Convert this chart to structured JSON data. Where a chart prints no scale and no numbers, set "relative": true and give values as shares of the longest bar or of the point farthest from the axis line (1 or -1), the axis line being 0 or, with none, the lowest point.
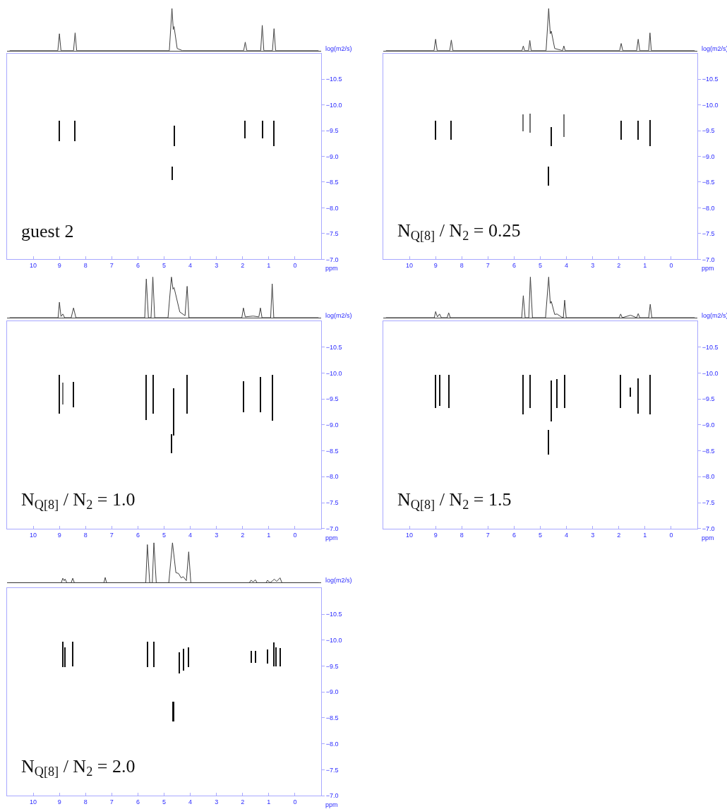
{
  "chart_data": [
    {
      "type": "line",
      "relative": true,
      "color": "#404040",
      "xlim": [
        11.0,
        -1.0
      ],
      "tick_labels": false,
      "x": [
        10.9,
        9.06,
        9.0,
        8.94,
        8.46,
        8.4,
        8.34,
        4.8,
        4.7,
        4.65,
        4.62,
        4.5,
        4.3,
        1.96,
        1.9,
        1.84,
        1.31,
        1.25,
        1.19,
        0.86,
        0.8,
        0.74,
        -0.9
      ],
      "values": [
        0,
        0,
        0.4,
        0,
        0,
        0.42,
        0,
        0,
        1.0,
        0.5,
        0.57,
        0.05,
        0,
        0,
        0.2,
        0,
        0,
        0.6,
        0,
        0,
        0.52,
        0,
        0
      ]
    },
    {
      "type": "bar",
      "xlabel": "ppm",
      "ylabel": "log(m2/s)",
      "xlim": [
        11.0,
        -1.0
      ],
      "xticks": [
        10,
        9,
        8,
        7,
        6,
        5,
        4,
        3,
        2,
        1,
        0
      ],
      "ylim": [
        -7.0,
        -11.0
      ],
      "yticks": [
        {
          "value": -10.5,
          "label": "−10.5"
        },
        {
          "value": -10.0,
          "label": "−10.0"
        },
        {
          "value": -9.5,
          "label": "−9.5"
        },
        {
          "value": -9.0,
          "label": "−9.0"
        },
        {
          "value": -8.5,
          "label": "−8.5"
        },
        {
          "value": -8.0,
          "label": "−8.0"
        },
        {
          "value": -7.5,
          "label": "−7.5"
        },
        {
          "value": -7.0,
          "label": "−7.0"
        }
      ],
      "annotations": [
        "guest 2"
      ],
      "x": [
        9.0,
        8.4,
        4.7,
        4.6,
        1.9,
        1.25,
        0.8
      ],
      "base": [
        -9.3,
        -9.3,
        -8.55,
        -9.2,
        -9.35,
        -9.35,
        -9.2
      ],
      "values": [
        -0.4,
        -0.4,
        -0.25,
        -0.4,
        -0.35,
        -0.35,
        -0.5
      ],
      "colors": [
        "#111111",
        "#111111",
        "#111111",
        "#111111",
        "#111111",
        "#111111",
        "#111111"
      ]
    },
    {
      "type": "line",
      "relative": true,
      "color": "#404040",
      "xlim": [
        11.0,
        -1.0
      ],
      "tick_labels": false,
      "x": [
        10.9,
        9.06,
        9.0,
        8.94,
        8.46,
        8.4,
        8.34,
        5.7,
        5.65,
        5.6,
        5.45,
        5.4,
        5.35,
        4.78,
        4.68,
        4.62,
        4.58,
        4.45,
        4.15,
        4.1,
        4.05,
        1.97,
        1.91,
        1.85,
        1.32,
        1.26,
        1.2,
        0.86,
        0.81,
        0.76,
        -0.9
      ],
      "values": [
        0,
        0,
        0.27,
        0,
        0,
        0.25,
        0,
        0,
        0.11,
        0,
        0,
        0.24,
        0,
        0,
        1.0,
        0.4,
        0.46,
        0.05,
        0,
        0.11,
        0,
        0,
        0.17,
        0,
        0,
        0.27,
        0,
        0,
        0.42,
        0,
        0
      ]
    },
    {
      "type": "bar",
      "xlabel": "ppm",
      "ylabel": "log(m2/s)",
      "xlim": [
        11.0,
        -1.0
      ],
      "xticks": [
        10,
        9,
        8,
        7,
        6,
        5,
        4,
        3,
        2,
        1,
        0
      ],
      "ylim": [
        -7.0,
        -11.0
      ],
      "yticks": [
        {
          "value": -10.5,
          "label": "−10.5"
        },
        {
          "value": -10.0,
          "label": "−10.0"
        },
        {
          "value": -9.5,
          "label": "−9.5"
        },
        {
          "value": -9.0,
          "label": "−9.0"
        },
        {
          "value": -8.5,
          "label": "−8.5"
        },
        {
          "value": -8.0,
          "label": "−8.0"
        },
        {
          "value": -7.5,
          "label": "−7.5"
        },
        {
          "value": -7.0,
          "label": "−7.0"
        }
      ],
      "annotations": [
        "N$_{Q[8]}$ / N$_{2}$ = 0.25"
      ],
      "x": [
        9.0,
        8.4,
        5.65,
        5.4,
        4.68,
        4.59,
        4.09,
        1.91,
        1.26,
        0.81
      ],
      "base": [
        -9.33,
        -9.33,
        -9.49,
        -9.46,
        -8.43,
        -9.2,
        -9.38,
        -9.33,
        -9.33,
        -9.21
      ],
      "values": [
        -0.37,
        -0.37,
        -0.33,
        -0.37,
        -0.38,
        -0.37,
        -0.44,
        -0.37,
        -0.37,
        -0.5
      ],
      "colors": [
        "#111111",
        "#111111",
        "#707070",
        "#707070",
        "#111111",
        "#111111",
        "#707070",
        "#111111",
        "#111111",
        "#111111"
      ]
    },
    {
      "type": "line",
      "relative": true,
      "color": "#404040",
      "xlim": [
        11.0,
        -1.0
      ],
      "tick_labels": false,
      "x": [
        10.9,
        9.05,
        9.0,
        8.94,
        8.87,
        8.8,
        8.55,
        8.46,
        8.37,
        5.74,
        5.68,
        5.6,
        5.5,
        5.43,
        5.36,
        4.85,
        4.72,
        4.66,
        4.62,
        4.4,
        4.2,
        4.12,
        4.05,
        2.03,
        1.97,
        1.9,
        1.6,
        1.38,
        1.32,
        1.26,
        0.93,
        0.87,
        0.81,
        -0.9
      ],
      "values": [
        0,
        0,
        0.38,
        0.03,
        0.09,
        0,
        0,
        0.24,
        0,
        0,
        0.95,
        0,
        0,
        1.0,
        0,
        0,
        1.0,
        0.7,
        0.74,
        0.14,
        0.05,
        0.77,
        0,
        0,
        0.24,
        0.02,
        0.04,
        0.02,
        0.24,
        0,
        0,
        0.83,
        0,
        0
      ]
    },
    {
      "type": "bar",
      "xlabel": "ppm",
      "ylabel": "log(m2/s)",
      "xlim": [
        11.0,
        -1.0
      ],
      "xticks": [
        10,
        9,
        8,
        7,
        6,
        5,
        4,
        3,
        2,
        1,
        0
      ],
      "ylim": [
        -7.0,
        -11.0
      ],
      "yticks": [
        {
          "value": -10.5,
          "label": "−10.5"
        },
        {
          "value": -10.0,
          "label": "−10.0"
        },
        {
          "value": -9.5,
          "label": "−9.5"
        },
        {
          "value": -9.0,
          "label": "−9.0"
        },
        {
          "value": -8.5,
          "label": "−8.5"
        },
        {
          "value": -8.0,
          "label": "−8.0"
        },
        {
          "value": -7.5,
          "label": "−7.5"
        },
        {
          "value": -7.0,
          "label": "−7.0"
        }
      ],
      "annotations": [
        "N$_{Q[8]}$ / N$_{2}$ = 1.0"
      ],
      "x": [
        9.0,
        8.87,
        8.46,
        5.68,
        5.43,
        4.72,
        4.63,
        4.12,
        1.97,
        1.32,
        0.87
      ],
      "base": [
        -9.21,
        -9.39,
        -9.34,
        -9.09,
        -9.21,
        -8.46,
        -8.8,
        -9.21,
        -9.24,
        -9.24,
        -9.08
      ],
      "values": [
        -0.76,
        -0.42,
        -0.49,
        -0.88,
        -0.76,
        -0.36,
        -0.91,
        -0.76,
        -0.6,
        -0.69,
        -0.89
      ],
      "colors": [
        "#111111",
        "#707070",
        "#111111",
        "#111111",
        "#111111",
        "#111111",
        "#111111",
        "#111111",
        "#111111",
        "#111111",
        "#111111"
      ]
    },
    {
      "type": "line",
      "relative": true,
      "color": "#404040",
      "xlim": [
        11.0,
        -1.0
      ],
      "tick_labels": false,
      "x": [
        10.9,
        9.05,
        9.0,
        8.93,
        8.85,
        8.78,
        8.56,
        8.5,
        8.44,
        5.71,
        5.65,
        5.58,
        5.44,
        5.38,
        5.3,
        4.8,
        4.68,
        4.62,
        4.58,
        4.45,
        4.36,
        4.2,
        4.12,
        4.07,
        4.01,
        1.99,
        1.93,
        1.87,
        1.55,
        1.32,
        1.26,
        1.2,
        0.86,
        0.8,
        0.74,
        -0.9
      ],
      "values": [
        0,
        0,
        0.15,
        0.02,
        0.09,
        0,
        0,
        0.12,
        0,
        0,
        0.54,
        0,
        0,
        1.0,
        0,
        0,
        1.0,
        0.35,
        0.4,
        0.08,
        0.09,
        0.02,
        0,
        0.43,
        0,
        0,
        0.09,
        0,
        0.06,
        0,
        0.1,
        0,
        0,
        0.33,
        0,
        0
      ]
    },
    {
      "type": "bar",
      "xlabel": "ppm",
      "ylabel": "log(m2/s)",
      "xlim": [
        11.0,
        -1.0
      ],
      "xticks": [
        10,
        9,
        8,
        7,
        6,
        5,
        4,
        3,
        2,
        1,
        0
      ],
      "ylim": [
        -7.0,
        -11.0
      ],
      "yticks": [
        {
          "value": -10.5,
          "label": "−10.5"
        },
        {
          "value": -10.0,
          "label": "−10.0"
        },
        {
          "value": -9.5,
          "label": "−9.5"
        },
        {
          "value": -9.0,
          "label": "−9.0"
        },
        {
          "value": -8.5,
          "label": "−8.5"
        },
        {
          "value": -8.0,
          "label": "−8.0"
        },
        {
          "value": -7.5,
          "label": "−7.5"
        },
        {
          "value": -7.0,
          "label": "−7.0"
        }
      ],
      "annotations": [
        "N$_{Q[8]}$ / N$_{2}$ = 1.5"
      ],
      "x": [
        9.0,
        8.83,
        8.5,
        5.65,
        5.38,
        4.68,
        4.59,
        4.36,
        4.07,
        1.93,
        1.55,
        1.26,
        0.8
      ],
      "base": [
        -9.33,
        -9.36,
        -9.33,
        -9.2,
        -9.33,
        -8.43,
        -9.06,
        -9.33,
        -9.33,
        -9.33,
        -9.54,
        -9.22,
        -9.2
      ],
      "values": [
        -0.64,
        -0.61,
        -0.64,
        -0.77,
        -0.64,
        -0.47,
        -0.79,
        -0.55,
        -0.64,
        -0.64,
        -0.18,
        -0.68,
        -0.77
      ],
      "colors": [
        "#111111",
        "#111111",
        "#111111",
        "#111111",
        "#111111",
        "#111111",
        "#111111",
        "#111111",
        "#111111",
        "#111111",
        "#111111",
        "#111111",
        "#111111"
      ]
    },
    {
      "type": "line",
      "relative": true,
      "color": "#404040",
      "xlim": [
        11.0,
        -1.0
      ],
      "tick_labels": false,
      "x": [
        10.9,
        8.93,
        8.87,
        8.82,
        8.78,
        8.72,
        8.55,
        8.49,
        8.43,
        7.3,
        7.25,
        7.2,
        5.7,
        5.64,
        5.55,
        5.45,
        5.39,
        5.3,
        4.82,
        4.68,
        4.55,
        4.45,
        4.35,
        4.27,
        4.15,
        4.06,
        3.98,
        1.74,
        1.68,
        1.6,
        1.51,
        1.45,
        1.1,
        1.05,
        0.95,
        0.85,
        0.79,
        0.7,
        0.57,
        0.5,
        -0.9
      ],
      "values": [
        0,
        0,
        0.11,
        0.05,
        0.09,
        0,
        0,
        0.11,
        0,
        0,
        0.13,
        0,
        0,
        0.95,
        0,
        0,
        1.0,
        0,
        0,
        1.0,
        0.25,
        0.23,
        0.12,
        0.15,
        0.05,
        0.77,
        0,
        0,
        0.06,
        0.02,
        0.07,
        0,
        0,
        0.06,
        0,
        0.05,
        0.09,
        0.03,
        0.12,
        0,
        0
      ]
    },
    {
      "type": "bar",
      "xlabel": "ppm",
      "ylabel": "log(m2/s)",
      "xlim": [
        11.0,
        -1.0
      ],
      "xticks": [
        10,
        9,
        8,
        7,
        6,
        5,
        4,
        3,
        2,
        1,
        0
      ],
      "ylim": [
        -7.0,
        -11.0
      ],
      "yticks": [
        {
          "value": -10.5,
          "label": "−10.5"
        },
        {
          "value": -10.0,
          "label": "−10.0"
        },
        {
          "value": -9.5,
          "label": "−9.5"
        },
        {
          "value": -9.0,
          "label": "−9.0"
        },
        {
          "value": -8.5,
          "label": "−8.5"
        },
        {
          "value": -8.0,
          "label": "−8.0"
        },
        {
          "value": -7.5,
          "label": "−7.5"
        },
        {
          "value": -7.0,
          "label": "−7.0"
        }
      ],
      "annotations": [
        "N$_{Q[8]}$ / N$_{2}$ = 2.0"
      ],
      "x": [
        8.87,
        8.78,
        8.49,
        5.64,
        5.39,
        4.65,
        4.42,
        4.27,
        4.06,
        1.68,
        1.51,
        1.05,
        0.81,
        0.72,
        0.57
      ],
      "base": [
        -9.48,
        -9.48,
        -9.49,
        -9.47,
        -9.47,
        -8.43,
        -9.35,
        -9.4,
        -9.47,
        -9.56,
        -9.56,
        -9.54,
        -9.49,
        -9.49,
        -9.49
      ],
      "values": [
        -0.48,
        -0.37,
        -0.47,
        -0.49,
        -0.49,
        -0.38,
        -0.41,
        -0.43,
        -0.38,
        -0.23,
        -0.23,
        -0.27,
        -0.46,
        -0.37,
        -0.35
      ],
      "colors": [
        "#111111",
        "#111111",
        "#111111",
        "#111111",
        "#111111",
        "#111111",
        "#111111",
        "#111111",
        "#111111",
        "#111111",
        "#111111",
        "#111111",
        "#111111",
        "#111111",
        "#111111"
      ]
    }
  ]
}
